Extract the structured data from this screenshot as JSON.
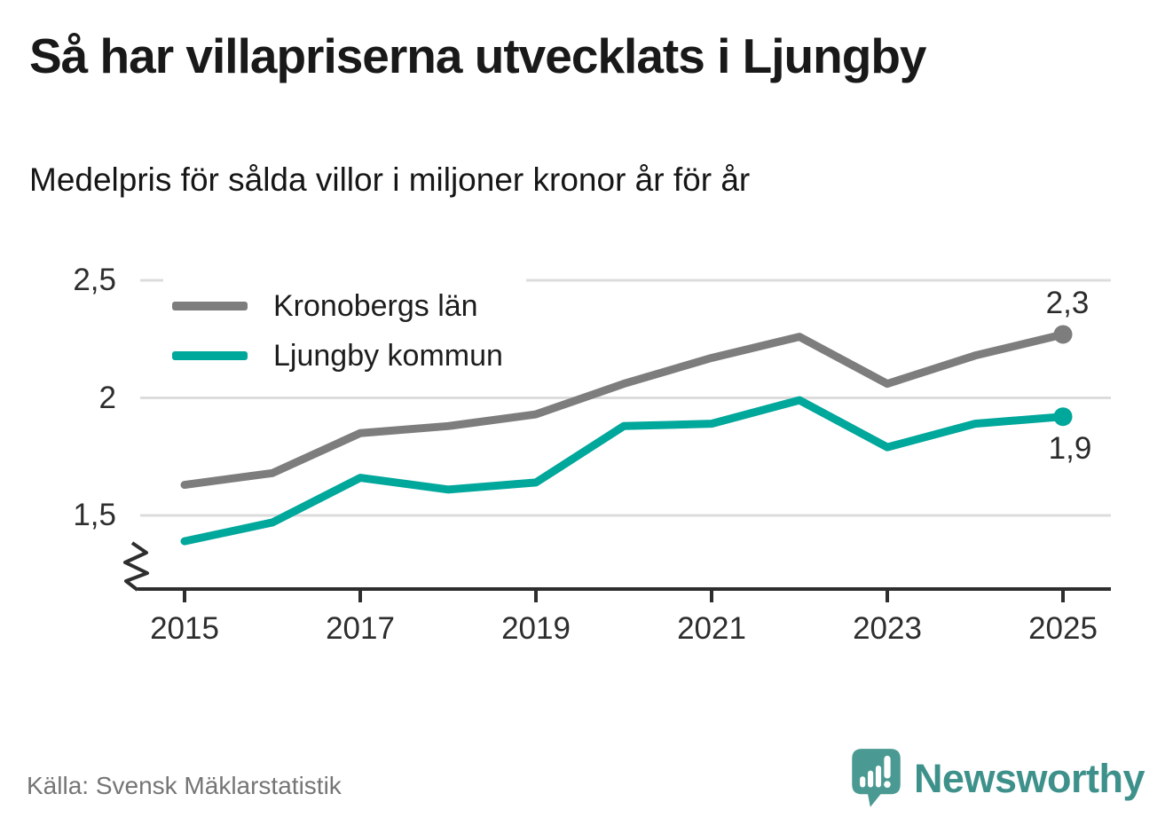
{
  "header": {
    "title": "Så har villapriserna utvecklats i Ljungby",
    "subtitle": "Medelpris för sålda villor i miljoner kronor år för år"
  },
  "footer": {
    "source": "Källa: Svensk Mäklarstatistik",
    "brand": "Newsworthy"
  },
  "colors": {
    "gridline": "#dcdcdc",
    "axis": "#2e2e2e",
    "brand_teal": "#4a9a93",
    "brand_text_teal": "#3e918b"
  },
  "chart_data": {
    "type": "line",
    "title": "Så har villapriserna utvecklats i Ljungby",
    "subtitle": "Medelpris för sålda villor i miljoner kronor år för år",
    "xlabel": "",
    "ylabel": "miljoner kronor",
    "x": [
      2015,
      2016,
      2017,
      2018,
      2019,
      2020,
      2021,
      2022,
      2023,
      2024,
      2025
    ],
    "series": [
      {
        "name": "Kronobergs län",
        "color": "#7d7d7e",
        "values": [
          1.63,
          1.68,
          1.85,
          1.88,
          1.93,
          2.06,
          2.17,
          2.26,
          2.06,
          2.18,
          2.27
        ],
        "end_label": "2,3"
      },
      {
        "name": "Ljungby kommun",
        "color": "#00a79b",
        "values": [
          1.39,
          1.47,
          1.66,
          1.61,
          1.64,
          1.88,
          1.89,
          1.99,
          1.79,
          1.89,
          1.92
        ],
        "end_label": "1,9"
      }
    ],
    "yticks": [
      {
        "value": 2.5,
        "label": "2,5"
      },
      {
        "value": 2.0,
        "label": "2"
      },
      {
        "value": 1.5,
        "label": "1,5"
      }
    ],
    "xticks": [
      {
        "value": 2015,
        "label": "2015"
      },
      {
        "value": 2017,
        "label": "2017"
      },
      {
        "value": 2019,
        "label": "2019"
      },
      {
        "value": 2021,
        "label": "2021"
      },
      {
        "value": 2023,
        "label": "2023"
      },
      {
        "value": 2025,
        "label": "2025"
      }
    ],
    "ylim": [
      1.19,
      2.5
    ],
    "axis_break": true,
    "grid": "horizontal",
    "legend_position": "top-left"
  }
}
